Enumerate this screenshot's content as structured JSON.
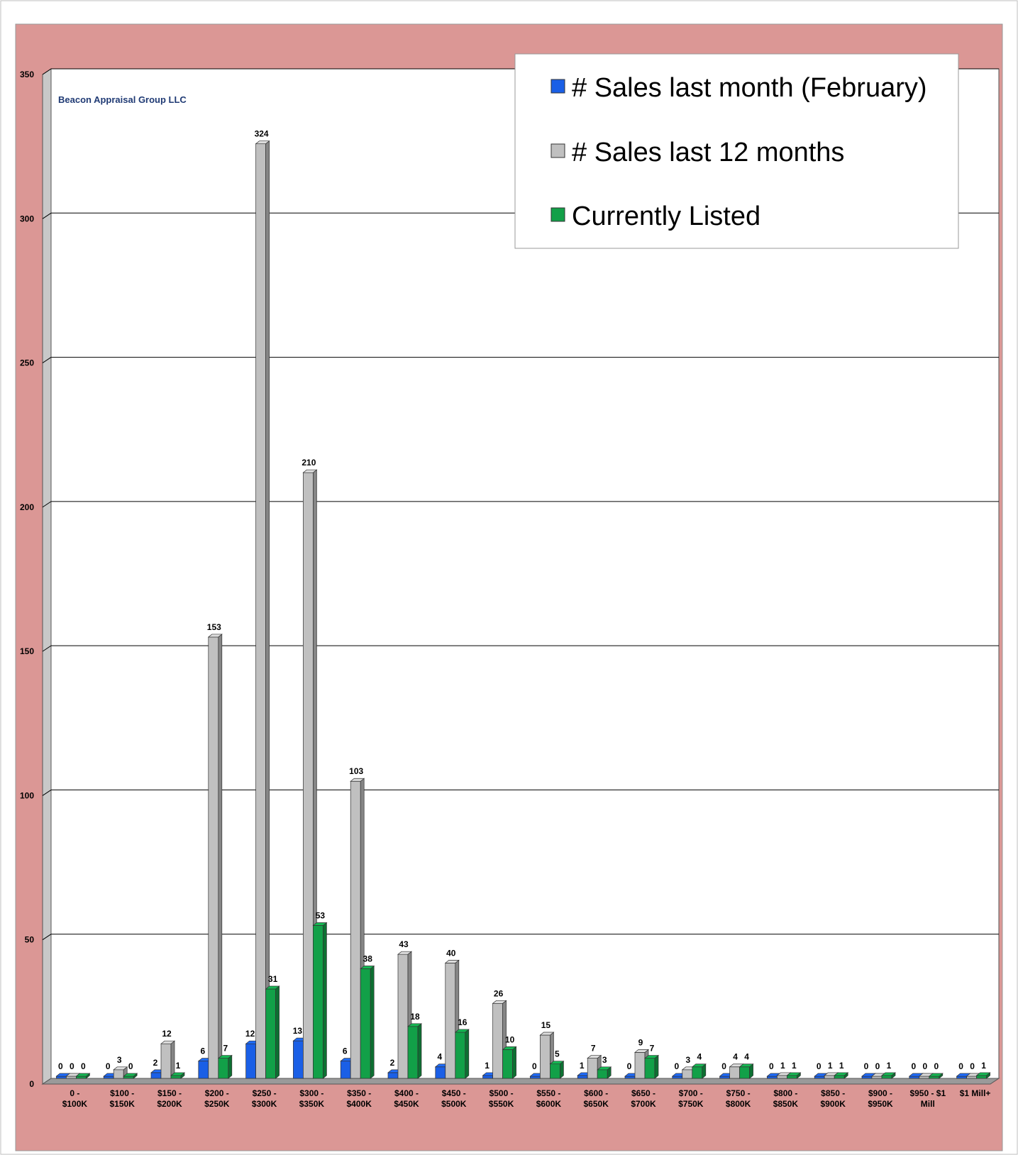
{
  "chart_data": {
    "type": "bar",
    "title": "",
    "xlabel": "",
    "ylabel": "",
    "ylim": [
      0,
      350
    ],
    "yticks": [
      0,
      50,
      100,
      150,
      200,
      250,
      300,
      350
    ],
    "grid": true,
    "legend_position": "top-right",
    "watermark": "Beacon Appraisal Group LLC",
    "categories": [
      [
        "0 -",
        "$100K"
      ],
      [
        "$100 -",
        "$150K"
      ],
      [
        "$150 -",
        "$200K"
      ],
      [
        "$200 -",
        "$250K"
      ],
      [
        "$250 -",
        "$300K"
      ],
      [
        "$300 -",
        "$350K"
      ],
      [
        "$350 -",
        "$400K"
      ],
      [
        "$400 -",
        "$450K"
      ],
      [
        "$450 -",
        "$500K"
      ],
      [
        "$500 -",
        "$550K"
      ],
      [
        "$550 -",
        "$600K"
      ],
      [
        "$600 -",
        "$650K"
      ],
      [
        "$650 -",
        "$700K"
      ],
      [
        "$700 -",
        "$750K"
      ],
      [
        "$750 -",
        "$800K"
      ],
      [
        "$800 -",
        "$850K"
      ],
      [
        "$850 -",
        "$900K"
      ],
      [
        "$900 -",
        "$950K"
      ],
      [
        "$950 - $1",
        "Mill"
      ],
      [
        "$1 Mill+"
      ]
    ],
    "series": [
      {
        "name": "# Sales last month (February)",
        "color": "#1a5fe6",
        "values": [
          0,
          0,
          2,
          6,
          12,
          13,
          6,
          2,
          4,
          1,
          0,
          1,
          0,
          0,
          0,
          0,
          0,
          0,
          0,
          0
        ]
      },
      {
        "name": "# Sales last 12 months",
        "color": "#c0c0c0",
        "values": [
          0,
          3,
          12,
          153,
          324,
          210,
          103,
          43,
          40,
          26,
          15,
          7,
          9,
          3,
          4,
          1,
          1,
          0,
          0,
          0
        ]
      },
      {
        "name": "Currently Listed",
        "color": "#12a048",
        "values": [
          0,
          0,
          1,
          7,
          31,
          53,
          38,
          18,
          16,
          10,
          5,
          3,
          7,
          4,
          4,
          1,
          1,
          1,
          0,
          1
        ]
      }
    ],
    "colors": {
      "frame_bg": "#db9795",
      "plot_bg": "#ffffff",
      "watermark": "#1f3a74"
    }
  }
}
